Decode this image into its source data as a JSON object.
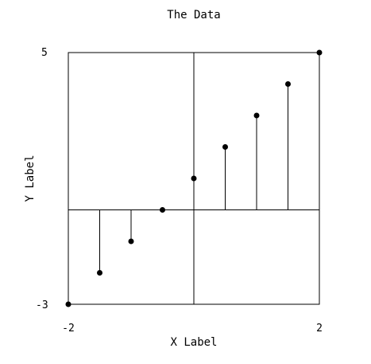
{
  "chart_data": {
    "type": "stem",
    "title": "The Data",
    "xlabel": "X Label",
    "ylabel": "Y Label",
    "xlim": [
      -2,
      2
    ],
    "ylim": [
      -3,
      5
    ],
    "baseline": 0,
    "x_ticks": [
      "-2",
      "2"
    ],
    "y_ticks": [
      "-3",
      "5"
    ],
    "grid": "zero-lines",
    "color": "#000000",
    "x": [
      -2,
      -1.5,
      -1,
      -0.5,
      0,
      0.5,
      1,
      1.5,
      2
    ],
    "y": [
      -3,
      -2,
      -1,
      0,
      1,
      2,
      3,
      4,
      5
    ]
  }
}
